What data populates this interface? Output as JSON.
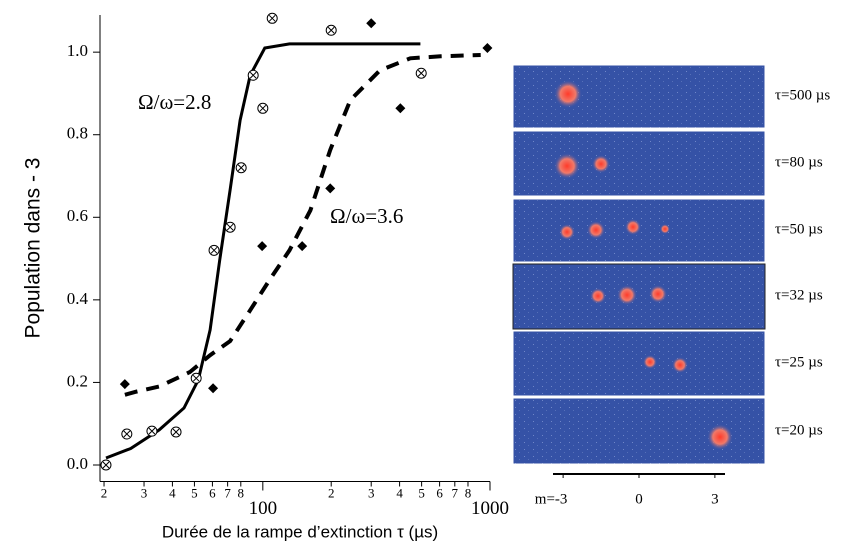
{
  "chart_data": {
    "type": "line",
    "xlabel": "Durée de la rampe d’extinction τ (µs)",
    "ylabel": "Population dans - 3",
    "xscale": "log",
    "xlim": [
      19.2,
      1000
    ],
    "ylim": [
      -0.04,
      1.09
    ],
    "xticks": [
      {
        "value": 20,
        "label": "2"
      },
      {
        "value": 30,
        "label": "3"
      },
      {
        "value": 40,
        "label": "4"
      },
      {
        "value": 50,
        "label": "5"
      },
      {
        "value": 60,
        "label": "6"
      },
      {
        "value": 70,
        "label": "7"
      },
      {
        "value": 80,
        "label": "8"
      },
      100,
      {
        "value": 200,
        "label": "2"
      },
      {
        "value": 300,
        "label": "3"
      },
      {
        "value": 400,
        "label": "4"
      },
      {
        "value": 500,
        "label": "5"
      },
      {
        "value": 600,
        "label": "6"
      },
      {
        "value": 700,
        "label": "7"
      },
      {
        "value": 800,
        "label": "8"
      },
      1000
    ],
    "yticks": [
      {
        "value": 0,
        "label": "0.0"
      },
      0.2,
      0.4,
      0.6,
      0.8,
      {
        "value": 1,
        "label": "1.0"
      }
    ],
    "series": [
      {
        "name": "Ω/ω=2.8",
        "color": "#000000",
        "line": "solid",
        "marker": "circle-x",
        "points": {
          "x": [
            20.4,
            25.2,
            32.5,
            41.5,
            50.9,
            61,
            71.8,
            80.3,
            90.7,
            100,
            110,
            200,
            498
          ],
          "y": [
            0.0,
            0.075,
            0.082,
            0.08,
            0.21,
            0.52,
            0.576,
            0.72,
            0.944,
            0.864,
            1.082,
            1.053,
            0.949
          ]
        },
        "fit": {
          "x": [
            20.4,
            26.2,
            35,
            45,
            52,
            58.6,
            64.6,
            71.8,
            79.4,
            88,
            102,
            131,
            494
          ],
          "y": [
            0.017,
            0.04,
            0.085,
            0.138,
            0.206,
            0.327,
            0.496,
            0.666,
            0.835,
            0.944,
            1.01,
            1.02,
            1.02
          ]
        }
      },
      {
        "name": "Ω/ω=3.6",
        "color": "#000000",
        "line": "dashed",
        "marker": "diamond",
        "points": {
          "x": [
            24.7,
            60.4,
            99.3,
            149,
            198,
            300,
            403,
            974
          ],
          "y": [
            0.196,
            0.186,
            0.53,
            0.53,
            0.67,
            1.07,
            0.864,
            1.01
          ]
        },
        "fit": {
          "x": [
            24.7,
            27.4,
            35,
            47.7,
            58.6,
            71.8,
            88,
            107,
            131,
            162,
            198,
            243,
            328,
            446,
            606,
            910
          ],
          "y": [
            0.17,
            0.177,
            0.19,
            0.225,
            0.266,
            0.3,
            0.375,
            0.448,
            0.52,
            0.617,
            0.763,
            0.884,
            0.956,
            0.985,
            0.99,
            0.993
          ]
        }
      }
    ],
    "panels": [
      "τ=500 µs",
      "τ=80 µs",
      "τ=50 µs",
      "τ=32 µs",
      "τ=25 µs",
      "τ=20 µs"
    ],
    "m_axis": {
      "lim": [
        -3.4,
        3.4
      ],
      "ticks": [
        {
          "value": -3,
          "label": "m=-3"
        },
        0,
        3
      ]
    }
  }
}
